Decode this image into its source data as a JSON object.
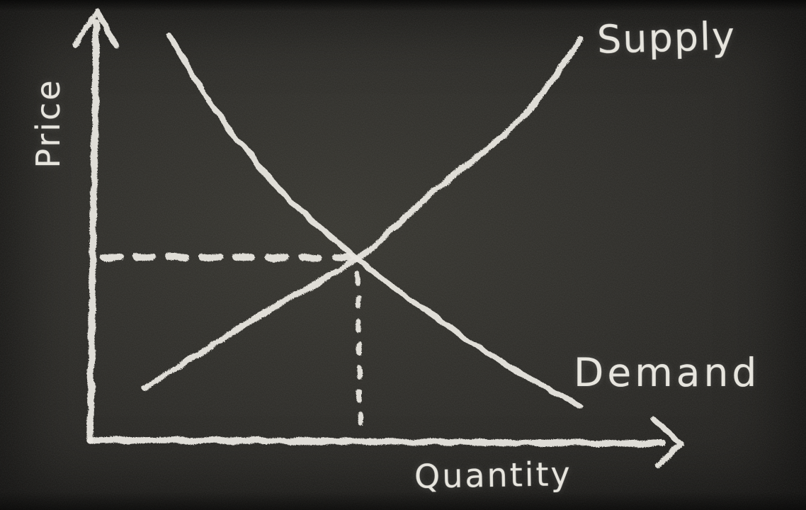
{
  "board": {
    "background_color": "#2b2a26",
    "chalk_color": "#e9e7e0",
    "style": "hand-drawn chalk on blackboard"
  },
  "chart_data": {
    "type": "line",
    "title": "",
    "xlabel": "Quantity",
    "ylabel": "Price",
    "axis_numeric_labels": false,
    "grid": false,
    "legend_position": "labels-at-line-ends",
    "axes": {
      "x_arrowhead": true,
      "y_arrowhead": true
    },
    "series": [
      {
        "name": "Supply",
        "shape": "upward-sloping, slightly convex",
        "points": [
          [
            0.095,
            0.12
          ],
          [
            0.304,
            0.301
          ],
          [
            0.452,
            0.42
          ],
          [
            0.577,
            0.572
          ],
          [
            0.724,
            0.741
          ],
          [
            0.827,
            0.929
          ]
        ]
      },
      {
        "name": "Demand",
        "shape": "downward-sloping, convex",
        "points": [
          [
            0.135,
            0.939
          ],
          [
            0.22,
            0.753
          ],
          [
            0.327,
            0.573
          ],
          [
            0.452,
            0.42
          ],
          [
            0.589,
            0.277
          ],
          [
            0.702,
            0.173
          ],
          [
            0.827,
            0.076
          ]
        ]
      }
    ],
    "equilibrium": {
      "x": 0.452,
      "y": 0.42,
      "guides": "dashed chalk lines from intersection to both axes"
    }
  }
}
